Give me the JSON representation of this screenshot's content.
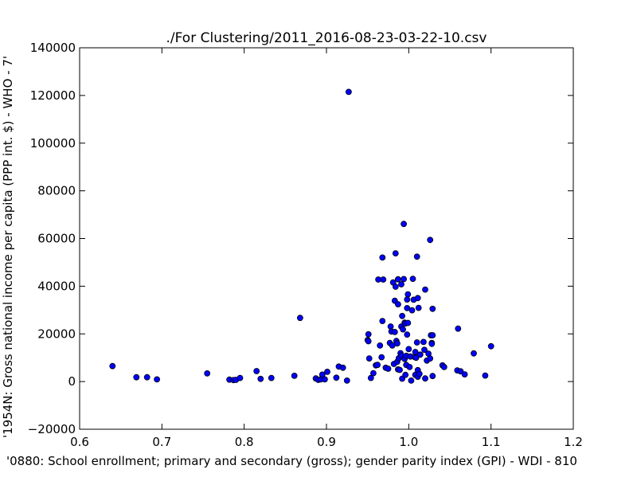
{
  "chart_data": {
    "type": "scatter",
    "title": "./For Clustering/2011_2016-08-23-03-22-10.csv",
    "xlabel": "'0880: School enrollment; primary and secondary (gross); gender parity index  (GPI) - WDI - 810",
    "ylabel": "'1954N: Gross national income per capita (PPP int. $) - WHO - 7'",
    "xlim": [
      0.6,
      1.2
    ],
    "ylim": [
      -20000,
      140000
    ],
    "xticks": [
      "0.6",
      "0.7",
      "0.8",
      "0.9",
      "1.0",
      "1.1",
      "1.2"
    ],
    "yticks": [
      "−20000",
      "0",
      "20000",
      "40000",
      "60000",
      "80000",
      "100000",
      "120000",
      "140000"
    ],
    "xtick_values": [
      0.6,
      0.7,
      0.8,
      0.9,
      1.0,
      1.1,
      1.2
    ],
    "ytick_values": [
      -20000,
      0,
      20000,
      40000,
      60000,
      80000,
      100000,
      120000,
      140000
    ],
    "grid": false,
    "marker_color": "#0000ff",
    "marker_edge_color": "#000000",
    "points": [
      [
        0.64,
        6500
      ],
      [
        0.669,
        1800
      ],
      [
        0.682,
        1800
      ],
      [
        0.694,
        900
      ],
      [
        0.755,
        3400
      ],
      [
        0.782,
        800
      ],
      [
        0.787,
        600
      ],
      [
        0.79,
        700
      ],
      [
        0.795,
        1500
      ],
      [
        0.815,
        4400
      ],
      [
        0.82,
        1100
      ],
      [
        0.833,
        1500
      ],
      [
        0.861,
        2400
      ],
      [
        0.868,
        26700
      ],
      [
        0.887,
        1300
      ],
      [
        0.89,
        700
      ],
      [
        0.893,
        900
      ],
      [
        0.895,
        2900
      ],
      [
        0.898,
        900
      ],
      [
        0.901,
        4100
      ],
      [
        0.912,
        1600
      ],
      [
        0.915,
        6300
      ],
      [
        0.92,
        5800
      ],
      [
        0.925,
        400
      ],
      [
        0.927,
        121500
      ],
      [
        0.95,
        17400
      ],
      [
        0.951,
        19800
      ],
      [
        0.951,
        16900
      ],
      [
        0.952,
        9700
      ],
      [
        0.954,
        1500
      ],
      [
        0.957,
        3500
      ],
      [
        0.96,
        6800
      ],
      [
        0.962,
        7000
      ],
      [
        0.963,
        42800
      ],
      [
        0.965,
        15100
      ],
      [
        0.967,
        10200
      ],
      [
        0.968,
        52000
      ],
      [
        0.968,
        25400
      ],
      [
        0.969,
        42800
      ],
      [
        0.972,
        5800
      ],
      [
        0.975,
        5400
      ],
      [
        0.977,
        16200
      ],
      [
        0.978,
        23100
      ],
      [
        0.979,
        21000
      ],
      [
        0.98,
        15100
      ],
      [
        0.981,
        41600
      ],
      [
        0.982,
        7400
      ],
      [
        0.983,
        20800
      ],
      [
        0.983,
        33900
      ],
      [
        0.984,
        53800
      ],
      [
        0.984,
        39800
      ],
      [
        0.985,
        17000
      ],
      [
        0.986,
        16000
      ],
      [
        0.986,
        8300
      ],
      [
        0.987,
        32400
      ],
      [
        0.987,
        42900
      ],
      [
        0.987,
        5100
      ],
      [
        0.988,
        9800
      ],
      [
        0.989,
        4900
      ],
      [
        0.99,
        11900
      ],
      [
        0.991,
        23100
      ],
      [
        0.991,
        40800
      ],
      [
        0.991,
        10900
      ],
      [
        0.992,
        1200
      ],
      [
        0.992,
        27500
      ],
      [
        0.993,
        21900
      ],
      [
        0.994,
        66100
      ],
      [
        0.994,
        43000
      ],
      [
        0.995,
        24700
      ],
      [
        0.995,
        9500
      ],
      [
        0.996,
        2800
      ],
      [
        0.996,
        24400
      ],
      [
        0.997,
        10800
      ],
      [
        0.997,
        7000
      ],
      [
        0.998,
        34400
      ],
      [
        0.998,
        19700
      ],
      [
        0.998,
        30800
      ],
      [
        0.999,
        36600
      ],
      [
        0.999,
        24600
      ],
      [
        1.0,
        13600
      ],
      [
        1.001,
        6100
      ],
      [
        1.002,
        10500
      ],
      [
        1.003,
        400
      ],
      [
        1.004,
        29900
      ],
      [
        1.005,
        43100
      ],
      [
        1.006,
        34300
      ],
      [
        1.007,
        10300
      ],
      [
        1.008,
        12400
      ],
      [
        1.008,
        2800
      ],
      [
        1.009,
        10000
      ],
      [
        1.01,
        16400
      ],
      [
        1.01,
        52400
      ],
      [
        1.011,
        4800
      ],
      [
        1.011,
        35000
      ],
      [
        1.011,
        2000
      ],
      [
        1.012,
        30900
      ],
      [
        1.013,
        3200
      ],
      [
        1.014,
        11300
      ],
      [
        1.018,
        16600
      ],
      [
        1.019,
        13300
      ],
      [
        1.02,
        38600
      ],
      [
        1.02,
        1300
      ],
      [
        1.022,
        8800
      ],
      [
        1.024,
        11700
      ],
      [
        1.026,
        59400
      ],
      [
        1.026,
        9700
      ],
      [
        1.027,
        19400
      ],
      [
        1.028,
        16200
      ],
      [
        1.028,
        15800
      ],
      [
        1.029,
        19400
      ],
      [
        1.029,
        30500
      ],
      [
        1.029,
        2300
      ],
      [
        1.041,
        6800
      ],
      [
        1.043,
        6100
      ],
      [
        1.059,
        4700
      ],
      [
        1.06,
        22200
      ],
      [
        1.063,
        4300
      ],
      [
        1.068,
        3000
      ],
      [
        1.079,
        11800
      ],
      [
        1.093,
        2500
      ],
      [
        1.1,
        14800
      ]
    ]
  }
}
